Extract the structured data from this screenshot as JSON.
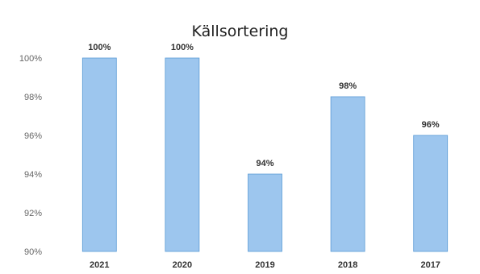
{
  "chart_data": {
    "type": "bar",
    "title": "Källsortering",
    "xlabel": "",
    "ylabel": "",
    "categories": [
      "2021",
      "2020",
      "2019",
      "2018",
      "2017"
    ],
    "values": [
      100,
      100,
      94,
      98,
      96
    ],
    "data_labels": [
      "100%",
      "100%",
      "94%",
      "98%",
      "96%"
    ],
    "ylim": [
      90,
      100
    ],
    "yticks": [
      90,
      92,
      94,
      96,
      98,
      100
    ],
    "ytick_labels": [
      "90%",
      "92%",
      "94%",
      "96%",
      "98%",
      "100%"
    ],
    "bar_color": "#9DC6EE",
    "bar_edge_color": "#5B9BD5",
    "grid": false,
    "legend": "none"
  }
}
